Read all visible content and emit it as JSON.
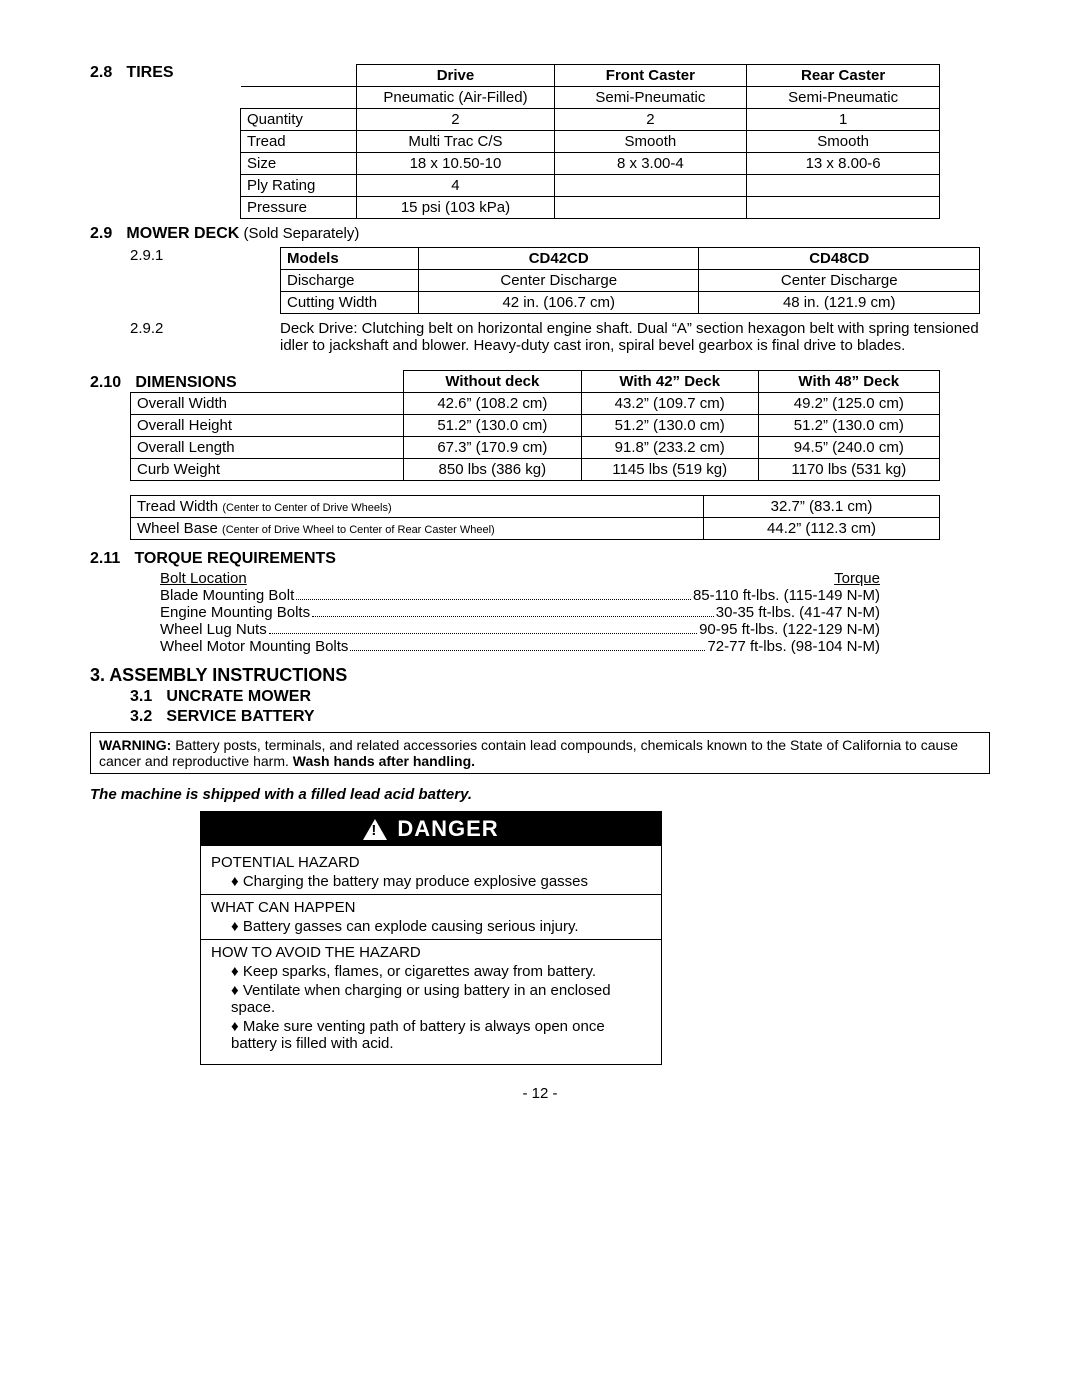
{
  "sections": {
    "tires": {
      "num": "2.8",
      "title": "TIRES"
    },
    "mowerDeck": {
      "num": "2.9",
      "title": "MOWER DECK",
      "suffix": "(Sold Separately)"
    },
    "dimensions": {
      "num": "2.10",
      "title": "DIMENSIONS"
    },
    "torque": {
      "num": "2.11",
      "title": "TORQUE REQUIREMENTS"
    },
    "assembly": {
      "num": "3.",
      "title": "ASSEMBLY INSTRUCTIONS"
    },
    "uncrate": {
      "num": "3.1",
      "title": "UNCRATE MOWER"
    },
    "service": {
      "num": "3.2",
      "title": "SERVICE BATTERY"
    }
  },
  "tiresTable": {
    "headers": [
      "",
      "Drive",
      "Front Caster",
      "Rear Caster"
    ],
    "typeRow": [
      "",
      "Pneumatic (Air-Filled)",
      "Semi-Pneumatic",
      "Semi-Pneumatic"
    ],
    "rows": [
      [
        "Quantity",
        "2",
        "2",
        "1"
      ],
      [
        "Tread",
        "Multi Trac C/S",
        "Smooth",
        "Smooth"
      ],
      [
        "Size",
        "18 x 10.50-10",
        "8 x 3.00-4",
        "13 x 8.00-6"
      ],
      [
        "Ply Rating",
        "4",
        "",
        ""
      ],
      [
        "Pressure",
        "15 psi (103 kPa)",
        "",
        ""
      ]
    ]
  },
  "mower": {
    "sub1_num": "2.9.1",
    "headers": [
      "Models",
      "CD42CD",
      "CD48CD"
    ],
    "rows": [
      [
        "Discharge",
        "Center Discharge",
        "Center Discharge"
      ],
      [
        "Cutting Width",
        "42 in. (106.7 cm)",
        "48 in. (121.9 cm)"
      ]
    ],
    "sub2_num": "2.9.2",
    "deckDrive": "Deck Drive:  Clutching belt on horizontal engine shaft.  Dual “A” section hexagon belt with spring tensioned idler to jackshaft and blower.  Heavy-duty cast iron, spiral bevel gearbox is final drive to blades."
  },
  "dimTable": {
    "headers": [
      "",
      "Without deck",
      "With 42” Deck",
      "With 48” Deck"
    ],
    "rows": [
      [
        "Overall Width",
        "42.6” (108.2 cm)",
        "43.2” (109.7 cm)",
        "49.2” (125.0 cm)"
      ],
      [
        "Overall Height",
        "51.2” (130.0 cm)",
        "51.2” (130.0 cm)",
        "51.2” (130.0 cm)"
      ],
      [
        "Overall Length",
        "67.3” (170.9 cm)",
        "91.8” (233.2 cm)",
        "94.5” (240.0 cm)"
      ],
      [
        "Curb Weight",
        "850 lbs (386 kg)",
        "1145 lbs (519 kg)",
        "1170 lbs (531 kg)"
      ]
    ]
  },
  "dim2": {
    "rows": [
      {
        "label": "Tread Width",
        "note": "(Center to Center of Drive Wheels)",
        "value": "32.7” (83.1 cm)"
      },
      {
        "label": "Wheel Base",
        "note": "(Center of Drive Wheel to Center of Rear Caster Wheel)",
        "value": "44.2” (112.3 cm)"
      }
    ]
  },
  "torque": {
    "colLeft": "Bolt Location",
    "colRight": "Torque",
    "rows": [
      {
        "l": "Blade Mounting Bolt",
        "r": "85-110 ft-lbs. (115-149 N-M)"
      },
      {
        "l": "Engine Mounting Bolts",
        "r": "30-35 ft-lbs. (41-47 N-M)"
      },
      {
        "l": "Wheel Lug Nuts",
        "r": "90-95 ft-lbs. (122-129 N-M)"
      },
      {
        "l": "Wheel Motor Mounting Bolts",
        "r": "72-77 ft-lbs. (98-104 N-M)"
      }
    ]
  },
  "warning": {
    "bold1": "WARNING:",
    "text": " Battery posts, terminals, and related accessories contain lead compounds, chemicals known to the State of California to cause cancer and reproductive harm.  ",
    "bold2": "Wash hands after handling."
  },
  "shipNote": "The machine is shipped with a filled lead acid battery.",
  "danger": {
    "title": "DANGER",
    "sections": [
      {
        "heading": "POTENTIAL HAZARD",
        "items": [
          "Charging the battery may produce explosive gasses"
        ]
      },
      {
        "heading": "WHAT CAN HAPPEN",
        "items": [
          "Battery gasses can explode causing serious injury."
        ]
      },
      {
        "heading": "HOW TO AVOID THE HAZARD",
        "items": [
          "Keep sparks, flames, or cigarettes away from battery.",
          "Ventilate when charging or using battery in an enclosed space.",
          "Make sure venting path of battery is always open once battery is filled with acid."
        ]
      }
    ]
  },
  "pageNum": "- 12 -"
}
